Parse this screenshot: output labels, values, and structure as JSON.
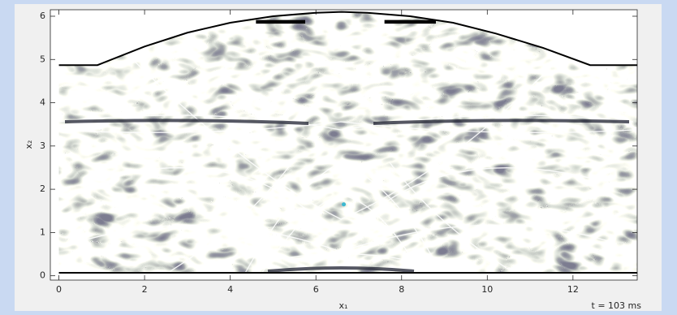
{
  "chart_data": {
    "type": "field",
    "xlabel": "x₁",
    "ylabel": "x₂",
    "annotation": "t = 103 ms",
    "xlim": [
      -0.2,
      13.5
    ],
    "ylim": [
      -0.1,
      6.15
    ],
    "xticks": [
      0,
      2,
      4,
      6,
      8,
      10,
      12
    ],
    "yticks": [
      0,
      1,
      2,
      3,
      4,
      5,
      6
    ],
    "boundary": {
      "x": [
        0,
        0.9,
        2,
        3,
        4,
        5,
        6,
        6.6,
        7.2,
        8.2,
        9.2,
        10.2,
        11.3,
        12.4,
        13.5
      ],
      "y": [
        4.87,
        4.87,
        5.3,
        5.62,
        5.85,
        6.0,
        6.08,
        6.1,
        6.08,
        6.0,
        5.85,
        5.6,
        5.27,
        4.87,
        4.87
      ]
    },
    "bottom": {
      "x": [
        0,
        13.5
      ],
      "y": [
        0.07,
        0.07
      ]
    },
    "sensors": [
      {
        "x": [
          4.6,
          5.75
        ],
        "y": [
          5.87,
          5.87
        ]
      },
      {
        "x": [
          7.6,
          8.8
        ],
        "y": [
          5.87,
          5.87
        ]
      }
    ],
    "source": {
      "x": 6.65,
      "y": 1.65,
      "color": "#3cb8d0"
    }
  }
}
